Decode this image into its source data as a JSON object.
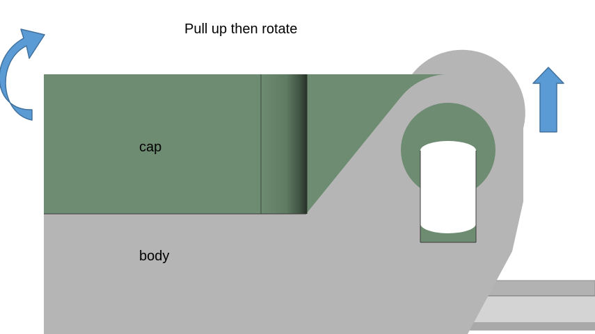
{
  "instruction": "Pull up then rotate",
  "labels": {
    "cap": "cap",
    "body": "body"
  },
  "icons": {
    "rotate": "curved-rotate-arrow-icon",
    "lift": "up-arrow-icon"
  },
  "colors": {
    "background": "#ffffff",
    "cap_green": "#6e8c72",
    "body_gray": "#b5b5b5",
    "rail_light": "#d0d0d0",
    "rail_edge": "#8f8f8f",
    "arrow_blue": "#5b9bd5",
    "arrow_outline": "#41719c",
    "outline": "#3c3c3c"
  }
}
